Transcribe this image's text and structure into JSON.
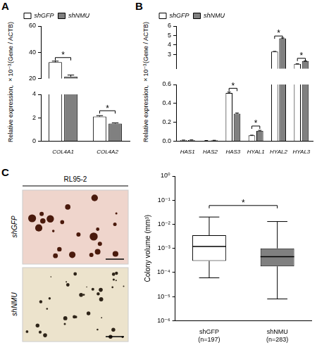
{
  "chart_data": [
    {
      "type": "bar",
      "title": "A",
      "y_label": [
        "Relative expression, ×10⁻³",
        "(Gene / ACTB)"
      ],
      "categories": [
        "COL4A1",
        "COL4A2"
      ],
      "series": [
        {
          "name": "shGFP",
          "color": "#ffffff",
          "values": [
            32.5,
            2.1
          ],
          "errors": [
            0.8,
            0.08
          ]
        },
        {
          "name": "shNMU",
          "color": "#808080",
          "values": [
            21.5,
            1.5
          ],
          "errors": [
            1.2,
            0.06
          ]
        }
      ],
      "segments": [
        {
          "ylim": [
            20,
            60
          ],
          "yticks": [
            20,
            40,
            60
          ]
        },
        {
          "ylim": [
            0,
            4
          ],
          "yticks": [
            0,
            2,
            4
          ]
        }
      ],
      "legend": "upper left",
      "grid": false,
      "annotations": [
        {
          "text": "*",
          "category": "COL4A1",
          "y": 36
        },
        {
          "text": "*",
          "category": "COL4A2",
          "y": 2.6
        }
      ]
    },
    {
      "type": "bar",
      "title": "B",
      "y_label": [
        "Relative expression, ×10⁻³",
        "(Gene / ACTB)"
      ],
      "categories": [
        "HAS1",
        "HAS2",
        "HAS3",
        "HYAL1",
        "HYAL2",
        "HYAL3"
      ],
      "series": [
        {
          "name": "shGFP",
          "color": "#ffffff",
          "values": [
            0.01,
            0.005,
            0.51,
            0.06,
            3.3,
            2.0
          ],
          "errors": [
            0.001,
            0.001,
            0.01,
            0.003,
            0.03,
            0.02
          ]
        },
        {
          "name": "shNMU",
          "color": "#808080",
          "values": [
            0.012,
            0.008,
            0.29,
            0.11,
            4.7,
            2.3
          ],
          "errors": [
            0.001,
            0.001,
            0.008,
            0.004,
            0.04,
            0.02
          ]
        }
      ],
      "segments": [
        {
          "ylim": [
            1.5,
            6
          ],
          "yticks": [
            3,
            4,
            5,
            6
          ]
        },
        {
          "ylim": [
            0,
            0.6
          ],
          "yticks": [
            {
              "value": 0,
              "label": "0.0"
            },
            0.2,
            0.4,
            0.6
          ]
        }
      ],
      "legend": "upper left",
      "grid": false,
      "annotations": [
        {
          "text": "*",
          "category": "HAS3",
          "y": 0.56
        },
        {
          "text": "*",
          "category": "HYAL1",
          "y": 0.16
        },
        {
          "text": "*",
          "category": "HYAL2",
          "y": 4.95
        },
        {
          "text": "*",
          "category": "HYAL3",
          "y": 2.6
        }
      ]
    },
    {
      "type": "box",
      "log": "y",
      "grid": false,
      "y_label": "Colony volume (mm³)",
      "categories": [
        [
          "shGFP",
          "(n=197)"
        ],
        [
          "shNMU",
          "(n=283)"
        ]
      ],
      "colors": [
        "#ffffff",
        "#808080"
      ],
      "min": [
        6e-05,
        8e-06
      ],
      "q1": [
        0.0003,
        0.00018
      ],
      "median": [
        0.0012,
        0.00045
      ],
      "q3": [
        0.0035,
        0.001
      ],
      "max": [
        0.02,
        0.013
      ],
      "ylim": [
        1e-06,
        1
      ],
      "yticks": [
        {
          "value": 1e-06,
          "label": "10⁻⁶"
        },
        {
          "value": 1e-05,
          "label": "10⁻⁵"
        },
        {
          "value": 0.0001,
          "label": "10⁻⁴"
        },
        {
          "value": 0.001,
          "label": "10⁻³"
        },
        {
          "value": 0.01,
          "label": "10⁻²"
        },
        {
          "value": 0.1,
          "label": "10⁻¹"
        },
        {
          "value": 1,
          "label": "10⁰"
        }
      ],
      "annotations": [
        {
          "text": "*",
          "between": [
            0,
            1
          ],
          "y": 0.06
        }
      ]
    }
  ],
  "image_panel": {
    "label": "C",
    "title": "RL95-2",
    "rows": [
      "shGFP",
      "shNMU"
    ]
  }
}
